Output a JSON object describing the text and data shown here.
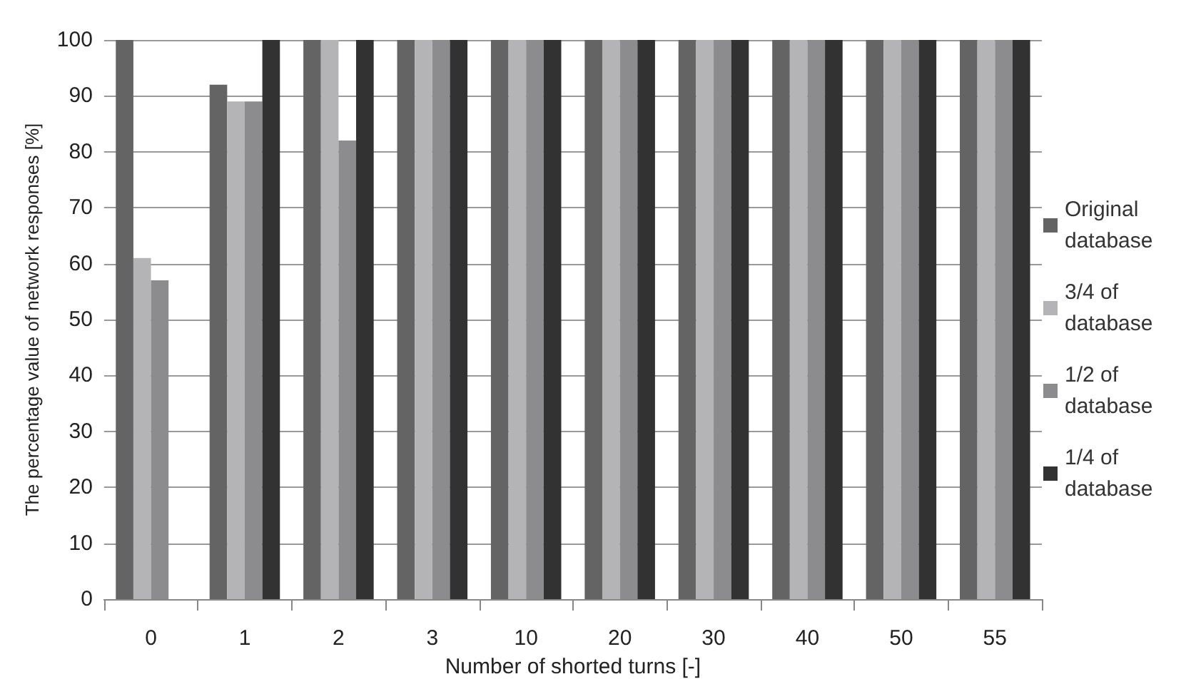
{
  "chart_data": {
    "type": "bar",
    "xlabel": "Number of shorted turns [-]",
    "ylabel": "The percentage value of network responses [%]",
    "categories": [
      "0",
      "1",
      "2",
      "3",
      "10",
      "20",
      "30",
      "40",
      "50",
      "55"
    ],
    "series": [
      {
        "name": "Original database",
        "color": "#646464",
        "values": [
          100,
          92,
          100,
          100,
          100,
          100,
          100,
          100,
          100,
          100
        ]
      },
      {
        "name": "3/4 of database",
        "color": "#b4b4b6",
        "values": [
          61,
          89,
          100,
          100,
          100,
          100,
          100,
          100,
          100,
          100
        ]
      },
      {
        "name": "1/2 of database",
        "color": "#8c8c8e",
        "values": [
          57,
          89,
          82,
          100,
          100,
          100,
          100,
          100,
          100,
          100
        ]
      },
      {
        "name": "1/4 of database",
        "color": "#323232",
        "values": [
          0,
          100,
          100,
          100,
          100,
          100,
          100,
          100,
          100,
          100
        ]
      }
    ],
    "ylim": [
      0,
      100
    ],
    "yticks": [
      0,
      10,
      20,
      30,
      40,
      50,
      60,
      70,
      80,
      90,
      100
    ],
    "grid": "y",
    "legend": "right"
  }
}
